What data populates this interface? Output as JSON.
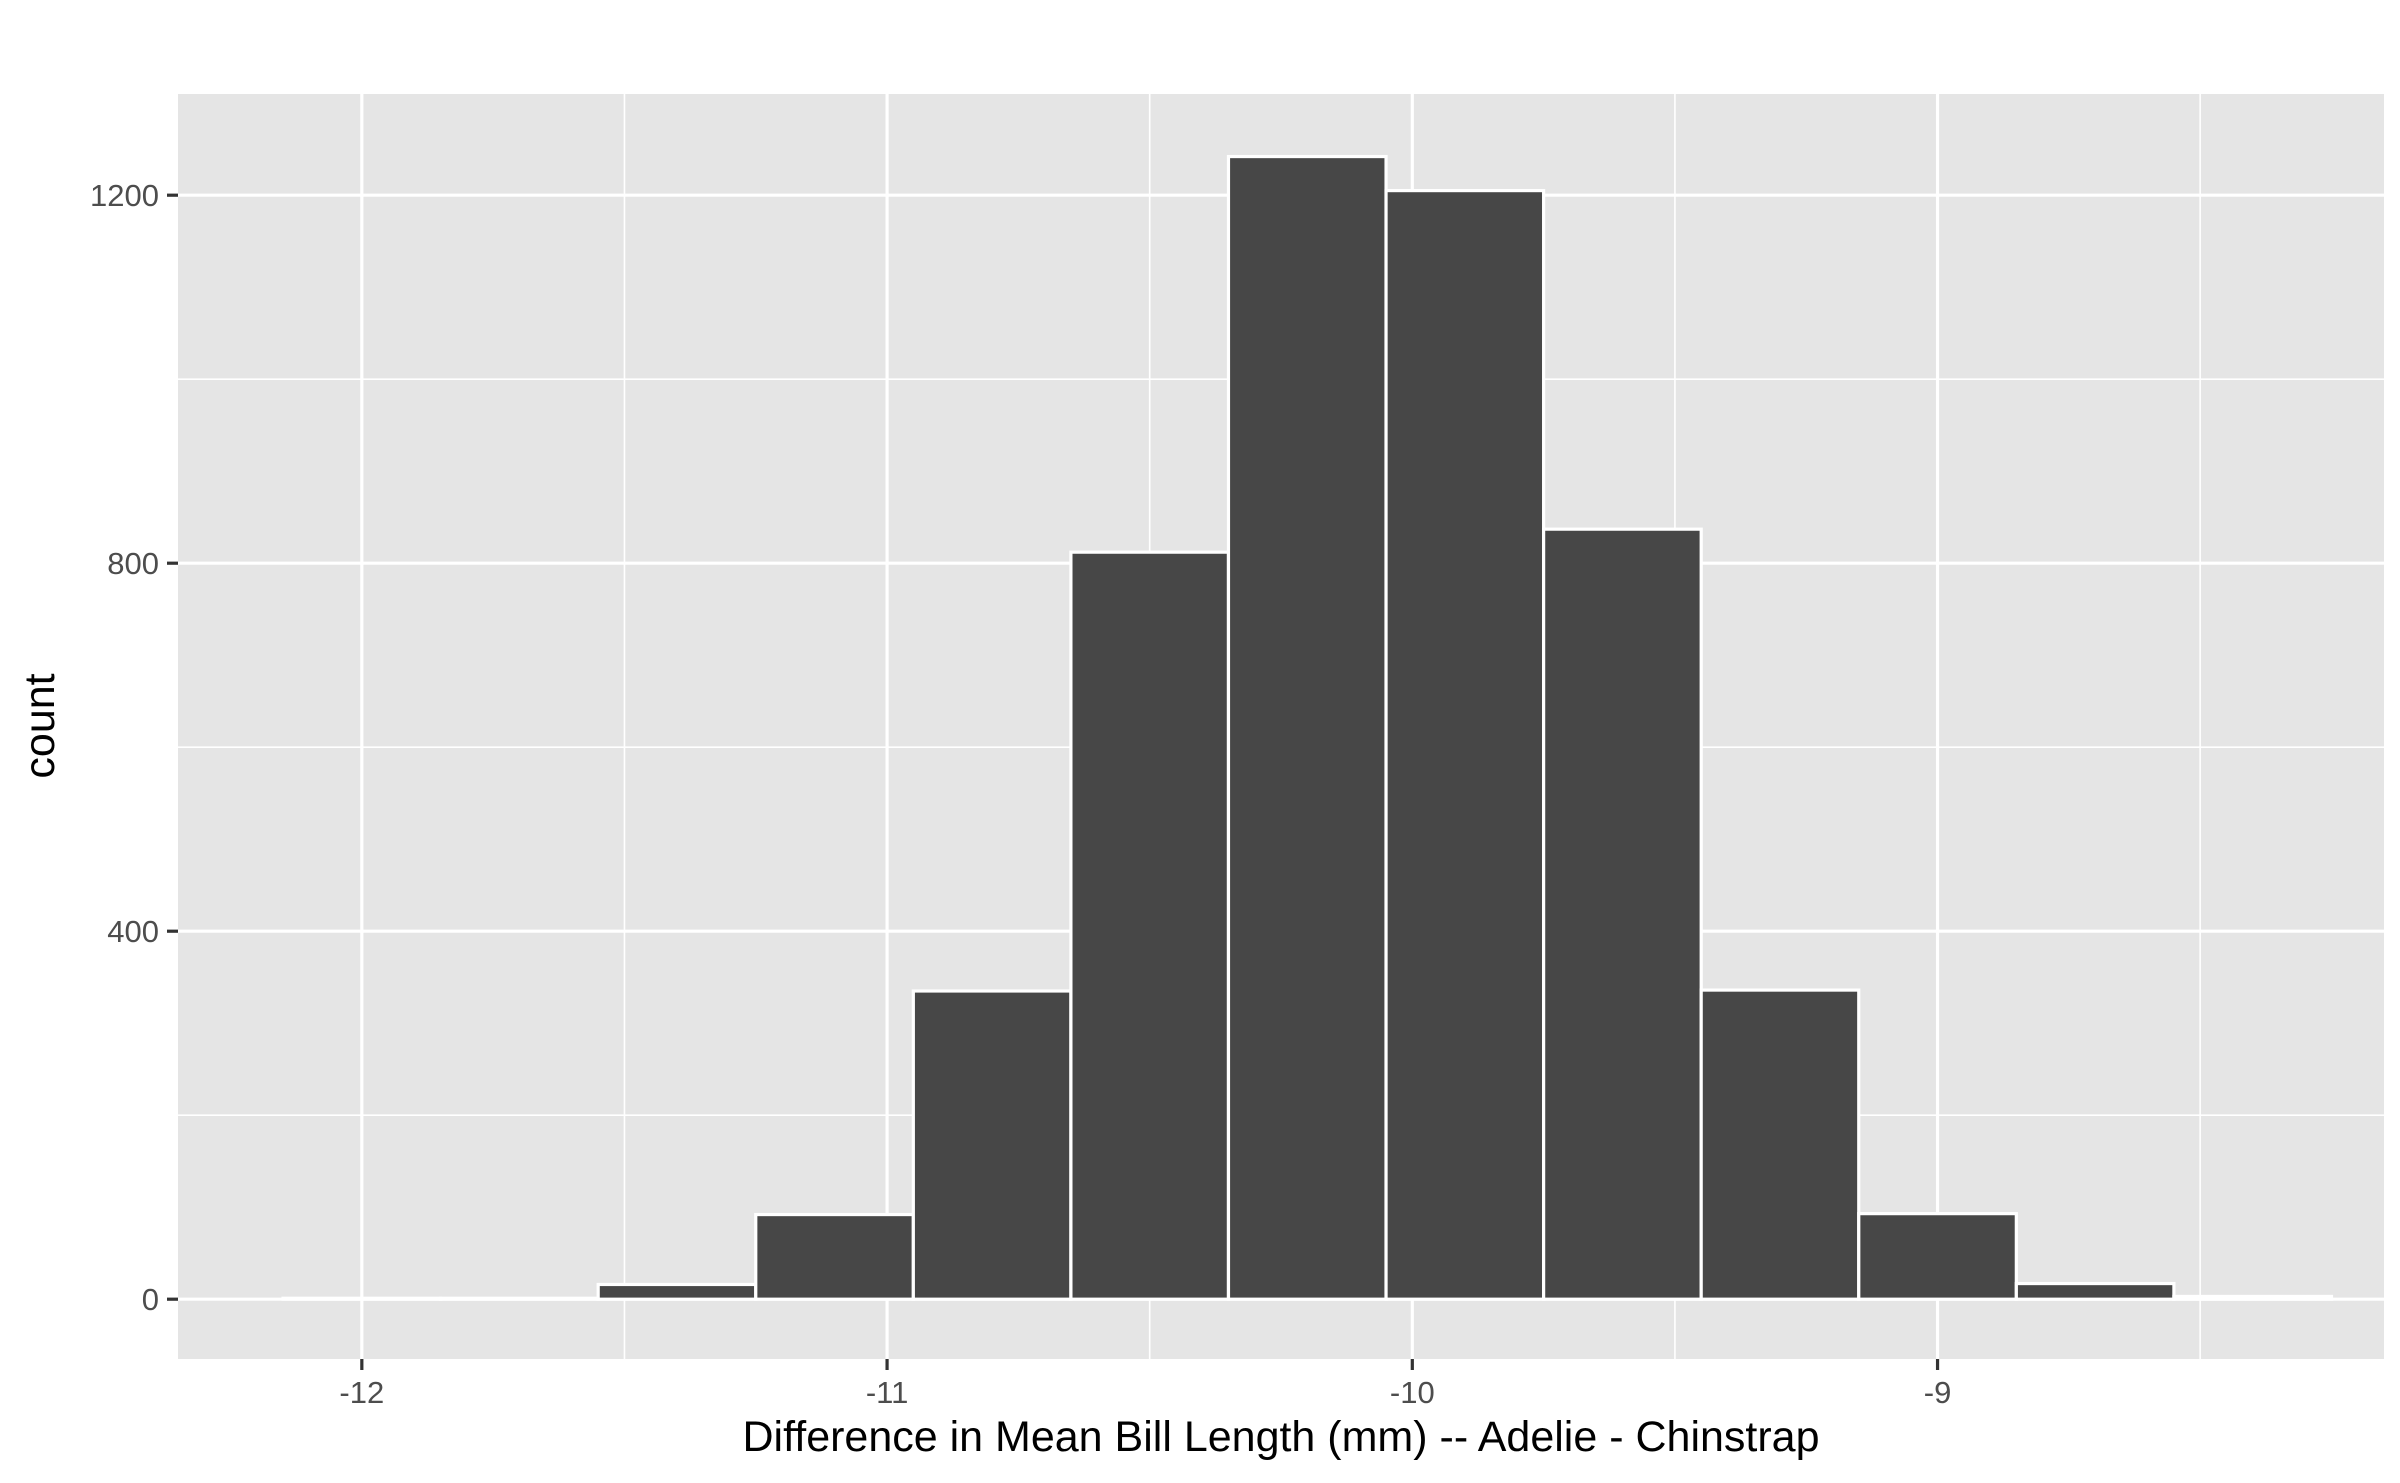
{
  "chart_data": {
    "type": "bar",
    "subtype": "histogram",
    "title": "",
    "xlabel": "Difference in Mean Bill Length (mm) -- Adelie - Chinstrap",
    "ylabel": "count",
    "xlim": [
      -12.35,
      -8.15
    ],
    "ylim": [
      -65,
      1310
    ],
    "x_ticks": [
      -12,
      -11,
      -10,
      -9
    ],
    "x_tick_labels": [
      "-12",
      "-11",
      "-10",
      "-9"
    ],
    "x_minor_ticks": [
      -11.5,
      -10.5,
      -9.5,
      -8.5
    ],
    "y_ticks": [
      0,
      400,
      800,
      1200
    ],
    "y_tick_labels": [
      "0",
      "400",
      "800",
      "1200"
    ],
    "y_minor_ticks": [
      200,
      600,
      1000
    ],
    "bin_width": 0.3,
    "bins": [
      {
        "x0": -12.15,
        "x1": -11.85,
        "count": 1
      },
      {
        "x0": -11.85,
        "x1": -11.55,
        "count": 1
      },
      {
        "x0": -11.55,
        "x1": -11.25,
        "count": 16
      },
      {
        "x0": -11.25,
        "x1": -10.95,
        "count": 92
      },
      {
        "x0": -10.95,
        "x1": -10.65,
        "count": 335
      },
      {
        "x0": -10.65,
        "x1": -10.35,
        "count": 812
      },
      {
        "x0": -10.35,
        "x1": -10.05,
        "count": 1242
      },
      {
        "x0": -10.05,
        "x1": -9.75,
        "count": 1205
      },
      {
        "x0": -9.75,
        "x1": -9.45,
        "count": 837
      },
      {
        "x0": -9.45,
        "x1": -9.15,
        "count": 336
      },
      {
        "x0": -9.15,
        "x1": -8.85,
        "count": 93
      },
      {
        "x0": -8.85,
        "x1": -8.55,
        "count": 17
      },
      {
        "x0": -8.55,
        "x1": -8.25,
        "count": 3
      }
    ],
    "grid": true,
    "colors": {
      "panel_background": "#e5e5e5",
      "grid_line": "#ffffff",
      "bar_fill": "#474747",
      "bar_outline": "#ffffff",
      "tick_mark": "#333333"
    }
  }
}
